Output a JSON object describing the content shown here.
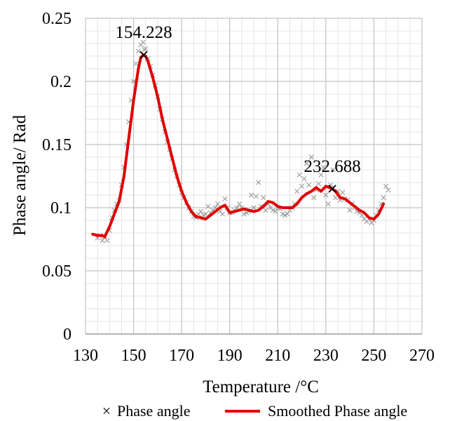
{
  "chart_data": {
    "type": "line",
    "title": "",
    "xlabel": "Temperature /°C",
    "ylabel": "Phase angle/ Rad",
    "xlim": [
      130,
      270
    ],
    "ylim": [
      0,
      0.25
    ],
    "x_ticks": [
      "130",
      "150",
      "170",
      "190",
      "210",
      "230",
      "250",
      "270"
    ],
    "y_ticks": [
      "0",
      "0.05",
      "0.1",
      "0.15",
      "0.2",
      "0.25"
    ],
    "grid": true,
    "minor_grid": true,
    "legend_position": "bottom",
    "annotations": [
      {
        "text": "154.228",
        "x": 154.2,
        "y": 0.221
      },
      {
        "text": "232.688",
        "x": 232.7,
        "y": 0.115
      }
    ],
    "series": [
      {
        "name": "Phase angle",
        "style": "scatter",
        "marker": "×",
        "color": "#8c8c8c",
        "x": [
          135,
          136,
          137,
          138,
          139,
          140,
          141,
          142,
          143,
          144,
          145,
          146,
          147,
          148,
          149,
          150,
          151,
          152,
          153,
          154,
          154.5,
          155,
          156,
          157,
          158,
          159,
          160,
          161,
          162,
          163,
          164,
          165,
          166,
          167,
          168,
          169,
          170,
          171,
          172,
          173,
          174,
          175,
          176,
          177,
          178,
          179,
          180,
          181,
          182,
          183,
          184,
          185,
          186,
          187,
          188,
          189,
          190,
          191,
          192,
          193,
          194,
          195,
          196,
          197,
          198,
          199,
          200,
          201,
          202,
          203,
          204,
          205,
          206,
          207,
          208,
          209,
          210,
          211,
          212,
          213,
          214,
          215,
          216,
          217,
          218,
          219,
          220,
          221,
          222,
          223,
          224,
          225,
          226,
          227,
          228,
          229,
          230,
          231,
          232,
          233,
          234,
          235,
          236,
          237,
          238,
          239,
          240,
          241,
          242,
          243,
          244,
          245,
          246,
          247,
          248,
          249,
          250,
          251,
          252,
          253,
          254,
          255,
          256
        ],
        "y": [
          0.076,
          0.078,
          0.074,
          0.077,
          0.074,
          0.082,
          0.092,
          0.098,
          0.103,
          0.106,
          0.118,
          0.132,
          0.15,
          0.168,
          0.185,
          0.2,
          0.214,
          0.224,
          0.229,
          0.231,
          0.225,
          0.226,
          0.218,
          0.212,
          0.205,
          0.197,
          0.188,
          0.178,
          0.17,
          0.16,
          0.152,
          0.146,
          0.139,
          0.13,
          0.125,
          0.118,
          0.112,
          0.108,
          0.104,
          0.1,
          0.097,
          0.093,
          0.092,
          0.095,
          0.097,
          0.094,
          0.095,
          0.101,
          0.096,
          0.098,
          0.1,
          0.103,
          0.097,
          0.095,
          0.107,
          0.1,
          0.096,
          0.096,
          0.098,
          0.1,
          0.103,
          0.1,
          0.095,
          0.096,
          0.097,
          0.11,
          0.1,
          0.109,
          0.12,
          0.101,
          0.108,
          0.098,
          0.103,
          0.1,
          0.098,
          0.097,
          0.1,
          0.099,
          0.095,
          0.094,
          0.095,
          0.098,
          0.1,
          0.103,
          0.113,
          0.126,
          0.117,
          0.123,
          0.135,
          0.118,
          0.14,
          0.108,
          0.114,
          0.119,
          0.126,
          0.132,
          0.11,
          0.103,
          0.118,
          0.13,
          0.108,
          0.113,
          0.106,
          0.112,
          0.107,
          0.106,
          0.098,
          0.103,
          0.1,
          0.097,
          0.096,
          0.094,
          0.091,
          0.089,
          0.091,
          0.088,
          0.09,
          0.094,
          0.098,
          0.103,
          0.108,
          0.117,
          0.114
        ]
      },
      {
        "name": "Smoothed Phase angle",
        "style": "line",
        "color": "#e00000",
        "x": [
          133,
          135,
          137,
          138,
          140,
          142,
          144,
          146,
          148,
          150,
          152,
          153,
          154.2,
          155,
          156,
          158,
          160,
          162,
          164,
          166,
          168,
          170,
          172,
          174,
          176,
          178,
          180,
          182,
          184,
          186,
          188,
          190,
          192,
          194,
          196,
          198,
          200,
          202,
          204,
          206,
          208,
          210,
          212,
          214,
          216,
          218,
          220,
          222,
          224,
          226,
          228,
          230,
          232.7,
          234,
          236,
          238,
          240,
          242,
          244,
          246,
          248,
          250,
          252,
          254
        ],
        "y": [
          0.079,
          0.078,
          0.078,
          0.077,
          0.085,
          0.095,
          0.105,
          0.125,
          0.155,
          0.185,
          0.21,
          0.219,
          0.221,
          0.22,
          0.216,
          0.203,
          0.188,
          0.17,
          0.155,
          0.14,
          0.125,
          0.113,
          0.104,
          0.097,
          0.093,
          0.092,
          0.091,
          0.094,
          0.097,
          0.1,
          0.102,
          0.096,
          0.097,
          0.098,
          0.099,
          0.098,
          0.097,
          0.098,
          0.101,
          0.105,
          0.104,
          0.101,
          0.1,
          0.1,
          0.1,
          0.103,
          0.108,
          0.111,
          0.113,
          0.116,
          0.113,
          0.117,
          0.115,
          0.113,
          0.108,
          0.107,
          0.104,
          0.101,
          0.098,
          0.096,
          0.092,
          0.091,
          0.095,
          0.103
        ]
      }
    ]
  }
}
